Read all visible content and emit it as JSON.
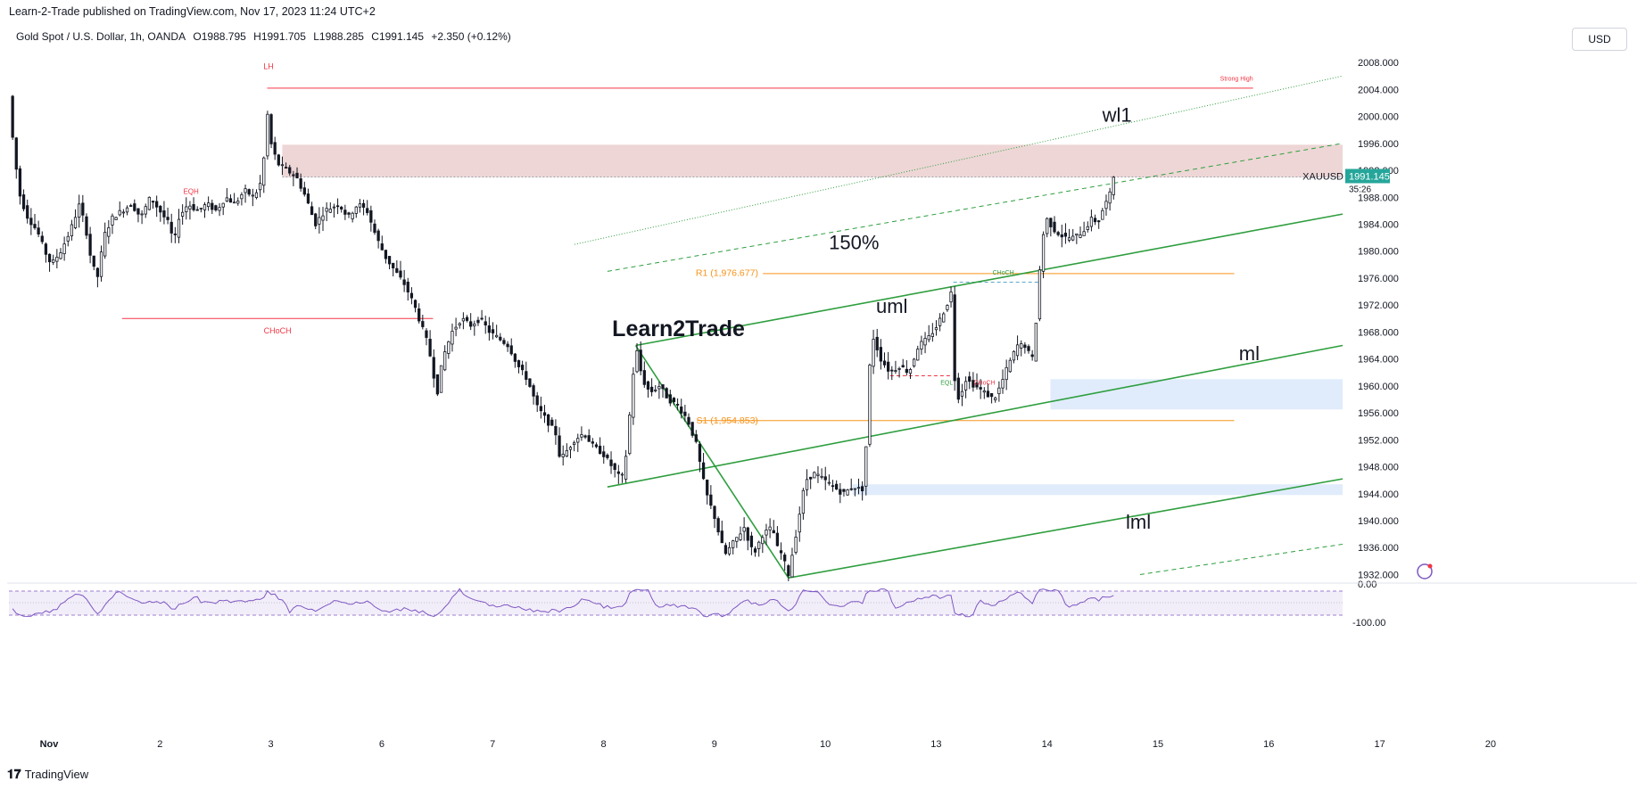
{
  "header": {
    "published": "Learn-2-Trade published on TradingView.com, Nov 17, 2023 11:24 UTC+2"
  },
  "legend": {
    "symbol": "Gold Spot / U.S. Dollar, 1h, OANDA",
    "open": "O1988.795",
    "high": "H1991.705",
    "low": "L1988.285",
    "close": "C1991.145",
    "change": "+2.350 (+0.12%)"
  },
  "currency_button": "USD",
  "price_tag": {
    "symbol": "XAUUSD",
    "price": "1991.145",
    "countdown": "35:26",
    "color": "#26a69a"
  },
  "footer": {
    "brand": "TradingView"
  },
  "watermark": {
    "text_left": "Learn",
    "text_mid": "2",
    "text_right": "Trade"
  },
  "colors": {
    "up": "#ffffff",
    "down": "#131722",
    "red_level": "#f23645",
    "orange_level": "#f7931a",
    "green_channel": "#2e9e3e",
    "supply_zone": "#e8c8c8",
    "demand_zone": "#dbe9fb",
    "rsi": "#7e57c2"
  },
  "annotations": {
    "lh": "LH",
    "choch_left": "CHoCH",
    "eqh": "EQH",
    "strong_high": "Strong High",
    "r1": "R1 (1,976.677)",
    "s1": "S1 (1,954.853)",
    "pct150": "150%",
    "uml": "uml",
    "ml": "ml",
    "lml": "lml",
    "wl1": "wl1",
    "eql": "EQL",
    "choch_mid": "CHoCH",
    "choch_right": "CHoCH"
  },
  "chart_data": {
    "type": "candlestick",
    "symbol": "XAUUSD",
    "timeframe": "1h",
    "y_axis": {
      "range": [
        1931,
        2010
      ],
      "ticks": [
        "2008.000",
        "2004.000",
        "2000.000",
        "1996.000",
        "1992.000",
        "1988.000",
        "1984.000",
        "1980.000",
        "1976.000",
        "1972.000",
        "1968.000",
        "1964.000",
        "1960.000",
        "1956.000",
        "1952.000",
        "1948.000",
        "1944.000",
        "1940.000",
        "1936.000",
        "1932.000"
      ]
    },
    "x_axis": {
      "range": [
        0,
        16
      ],
      "ticks": [
        {
          "label": "Nov",
          "x": 0
        },
        {
          "label": "2",
          "x": 1
        },
        {
          "label": "3",
          "x": 2
        },
        {
          "label": "6",
          "x": 3
        },
        {
          "label": "7",
          "x": 4
        },
        {
          "label": "8",
          "x": 5
        },
        {
          "label": "9",
          "x": 6
        },
        {
          "label": "10",
          "x": 7
        },
        {
          "label": "13",
          "x": 8
        },
        {
          "label": "14",
          "x": 9
        },
        {
          "label": "15",
          "x": 10
        },
        {
          "label": "16",
          "x": 11
        },
        {
          "label": "17",
          "x": 12
        },
        {
          "label": "20",
          "x": 13
        }
      ]
    },
    "path": [
      [
        0.0,
        2003
      ],
      [
        0.03,
        1998
      ],
      [
        0.07,
        1993
      ],
      [
        0.12,
        1988
      ],
      [
        0.2,
        1985
      ],
      [
        0.3,
        1983
      ],
      [
        0.38,
        1980
      ],
      [
        0.45,
        1978
      ],
      [
        0.55,
        1980
      ],
      [
        0.65,
        1983
      ],
      [
        0.75,
        1987
      ],
      [
        0.82,
        1983
      ],
      [
        0.88,
        1978
      ],
      [
        0.95,
        1976
      ],
      [
        1.0,
        1982
      ],
      [
        1.1,
        1985
      ],
      [
        1.2,
        1986
      ],
      [
        1.3,
        1987
      ],
      [
        1.4,
        1985
      ],
      [
        1.5,
        1988
      ],
      [
        1.6,
        1986
      ],
      [
        1.7,
        1984
      ],
      [
        1.75,
        1981
      ],
      [
        1.8,
        1985
      ],
      [
        1.9,
        1987
      ],
      [
        2.0,
        1986
      ],
      [
        2.1,
        1987
      ],
      [
        2.2,
        1986
      ],
      [
        2.3,
        1988
      ],
      [
        2.4,
        1987
      ],
      [
        2.5,
        1989
      ],
      [
        2.6,
        1988
      ],
      [
        2.7,
        1991
      ],
      [
        2.72,
        2003
      ],
      [
        2.78,
        1996
      ],
      [
        2.85,
        1993
      ],
      [
        2.95,
        1992
      ],
      [
        3.05,
        1991
      ],
      [
        3.15,
        1988
      ],
      [
        3.25,
        1984
      ],
      [
        3.35,
        1986
      ],
      [
        3.5,
        1987
      ],
      [
        3.6,
        1985
      ],
      [
        3.7,
        1987
      ],
      [
        3.8,
        1986
      ],
      [
        3.9,
        1982
      ],
      [
        4.0,
        1979
      ],
      [
        4.1,
        1977
      ],
      [
        4.2,
        1975
      ],
      [
        4.3,
        1972
      ],
      [
        4.4,
        1968
      ],
      [
        4.45,
        1966
      ],
      [
        4.5,
        1962
      ],
      [
        4.55,
        1959
      ],
      [
        4.6,
        1964
      ],
      [
        4.7,
        1968
      ],
      [
        4.8,
        1970
      ],
      [
        4.9,
        1969
      ],
      [
        5.0,
        1970
      ],
      [
        5.1,
        1968
      ],
      [
        5.2,
        1967
      ],
      [
        5.3,
        1966
      ],
      [
        5.4,
        1963
      ],
      [
        5.5,
        1961
      ],
      [
        5.6,
        1957
      ],
      [
        5.7,
        1955
      ],
      [
        5.8,
        1953
      ],
      [
        5.85,
        1949
      ],
      [
        5.9,
        1950
      ],
      [
        6.0,
        1952
      ],
      [
        6.1,
        1953
      ],
      [
        6.2,
        1951
      ],
      [
        6.3,
        1950
      ],
      [
        6.4,
        1948
      ],
      [
        6.5,
        1946
      ],
      [
        6.55,
        1950
      ],
      [
        6.6,
        1958
      ],
      [
        6.65,
        1966
      ],
      [
        6.72,
        1961
      ],
      [
        6.8,
        1959
      ],
      [
        6.9,
        1960
      ],
      [
        7.0,
        1958
      ],
      [
        7.1,
        1957
      ],
      [
        7.2,
        1955
      ],
      [
        7.25,
        1953
      ],
      [
        7.3,
        1951
      ],
      [
        7.35,
        1947
      ],
      [
        7.4,
        1944
      ],
      [
        7.5,
        1940
      ],
      [
        7.55,
        1937
      ],
      [
        7.6,
        1935
      ],
      [
        7.7,
        1937
      ],
      [
        7.8,
        1939
      ],
      [
        7.9,
        1935
      ],
      [
        8.0,
        1938
      ],
      [
        8.1,
        1939
      ],
      [
        8.15,
        1936
      ],
      [
        8.2,
        1935
      ],
      [
        8.27,
        1932
      ],
      [
        8.35,
        1938
      ],
      [
        8.45,
        1946
      ],
      [
        8.55,
        1947
      ],
      [
        8.65,
        1946
      ],
      [
        8.75,
        1945
      ],
      [
        8.85,
        1944
      ],
      [
        8.95,
        1945
      ],
      [
        9.0,
        1945
      ],
      [
        9.05,
        1944
      ],
      [
        9.1,
        1952
      ],
      [
        9.12,
        1959
      ],
      [
        9.15,
        1968
      ],
      [
        9.25,
        1964
      ],
      [
        9.35,
        1962
      ],
      [
        9.45,
        1963
      ],
      [
        9.55,
        1962
      ],
      [
        9.65,
        1966
      ],
      [
        9.75,
        1967
      ],
      [
        9.85,
        1969
      ],
      [
        9.95,
        1972
      ],
      [
        10.0,
        1974
      ],
      [
        10.02,
        1962
      ],
      [
        10.08,
        1958
      ],
      [
        10.15,
        1961
      ],
      [
        10.25,
        1960
      ],
      [
        10.35,
        1959
      ],
      [
        10.45,
        1958
      ],
      [
        10.52,
        1960
      ],
      [
        10.6,
        1963
      ],
      [
        10.7,
        1966
      ],
      [
        10.8,
        1966
      ],
      [
        10.85,
        1963
      ],
      [
        10.9,
        1970
      ],
      [
        10.95,
        1980
      ],
      [
        11.0,
        1985
      ],
      [
        11.1,
        1983
      ],
      [
        11.2,
        1982
      ],
      [
        11.3,
        1982
      ],
      [
        11.4,
        1983
      ],
      [
        11.5,
        1985
      ],
      [
        11.55,
        1984
      ],
      [
        11.6,
        1986
      ],
      [
        11.7,
        1989
      ],
      [
        11.72,
        1991.1
      ]
    ],
    "levels": [
      {
        "name": "LH",
        "y": 2004.2,
        "color": "#f23645"
      },
      {
        "name": "CHoCH",
        "y": 1970,
        "color": "#f23645"
      },
      {
        "name": "R1",
        "y": 1976.677,
        "color": "#f7931a"
      },
      {
        "name": "S1",
        "y": 1954.853,
        "color": "#f7931a"
      }
    ],
    "zones": [
      {
        "name": "supply",
        "y": [
          1991,
          1995.8
        ]
      },
      {
        "name": "demand-upper",
        "y": [
          1956.5,
          1961
        ]
      },
      {
        "name": "demand-lower",
        "y": [
          1943.8,
          1945.4
        ]
      }
    ],
    "indicator": {
      "name": "RSI",
      "ticks": [
        "0.00",
        "-100.00"
      ]
    }
  }
}
